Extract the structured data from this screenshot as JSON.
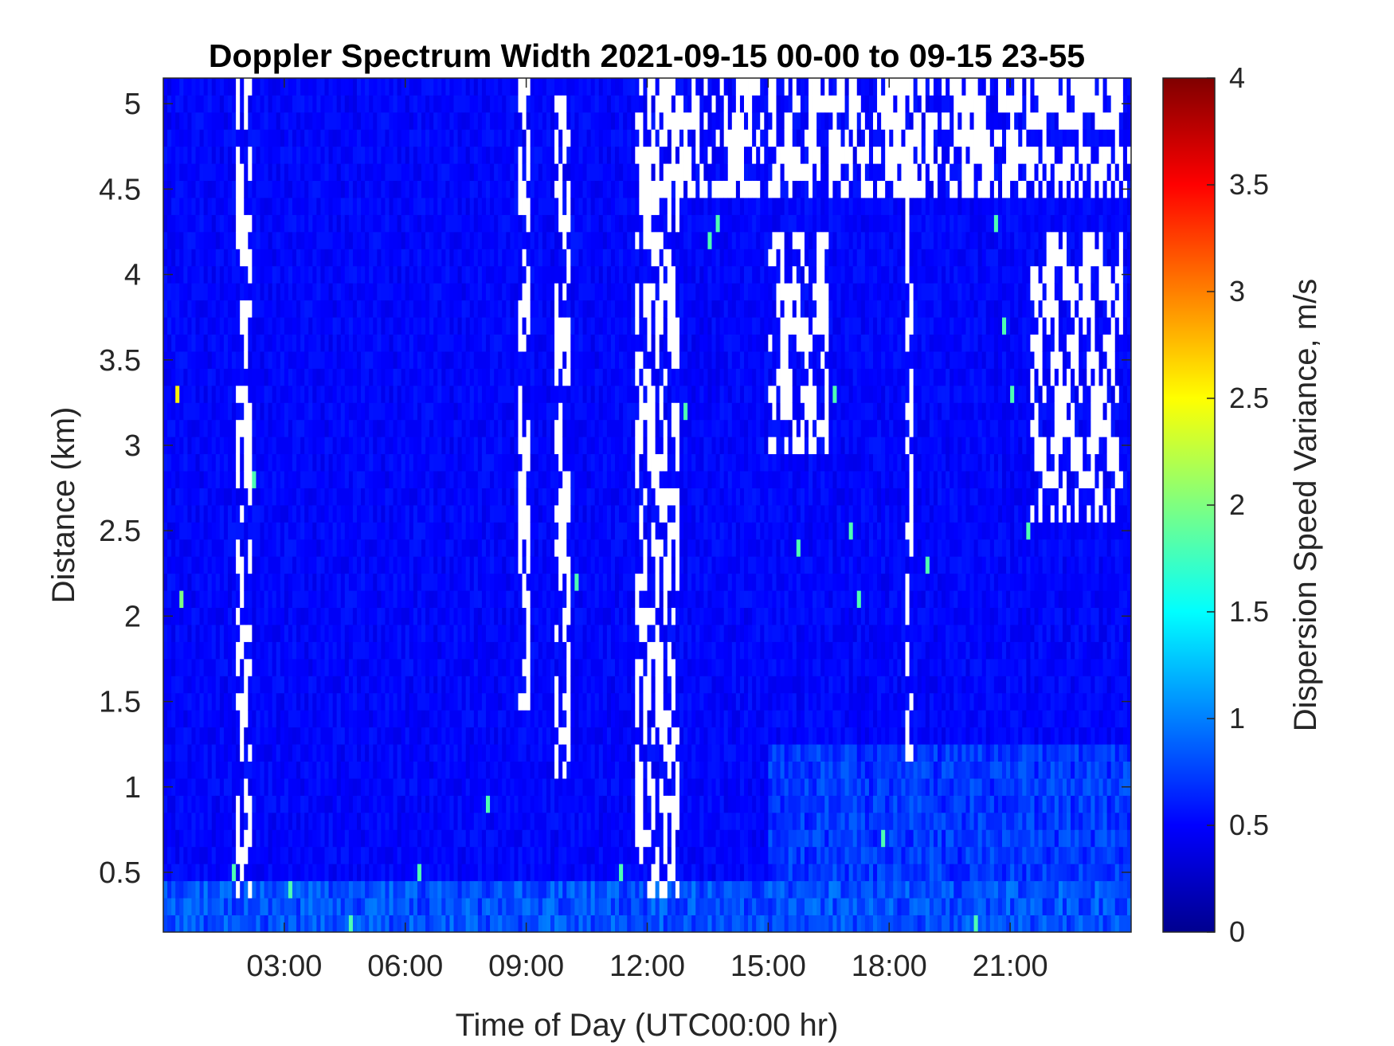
{
  "chart_data": {
    "type": "heatmap",
    "title": "Doppler Spectrum Width 2021-09-15 00-00 to 09-15 23-55",
    "xlabel": "Time of Day (UTC00:00 hr)",
    "ylabel": "Distance (km)",
    "xlim": [
      "00:00",
      "24:00"
    ],
    "ylim": [
      0.15,
      5.15
    ],
    "xticks": [
      "03:00",
      "06:00",
      "09:00",
      "12:00",
      "15:00",
      "18:00",
      "21:00"
    ],
    "yticks": [
      "0.5",
      "1",
      "1.5",
      "2",
      "2.5",
      "3",
      "3.5",
      "4",
      "4.5",
      "5"
    ],
    "colorbar": {
      "label": "Dispersion Speed Variance, m/s",
      "colormap": "jet",
      "limits": [
        0,
        4
      ],
      "ticks": [
        "0",
        "0.5",
        "1",
        "1.5",
        "2",
        "2.5",
        "3",
        "3.5",
        "4"
      ]
    },
    "missing_data_color": "#ffffff",
    "dominant_value_range": [
      0.4,
      0.6
    ],
    "missing_data_periods": [
      {
        "start": "01:50",
        "end": "02:10",
        "from_km": 0.4,
        "to_km": 5.15
      },
      {
        "start": "08:50",
        "end": "09:05",
        "from_km": 1.5,
        "to_km": 5.15
      },
      {
        "start": "09:45",
        "end": "10:05",
        "from_km": 1.1,
        "to_km": 5.15
      },
      {
        "start": "11:45",
        "end": "12:50",
        "from_km": 0.4,
        "to_km": 5.15
      },
      {
        "start": "18:25",
        "end": "18:35",
        "from_km": 1.2,
        "to_km": 5.15
      },
      {
        "start": "12:00",
        "end": "24:00",
        "from_km": 4.5,
        "to_km": 5.15
      },
      {
        "start": "15:00",
        "end": "16:30",
        "from_km": 3.0,
        "to_km": 4.3
      },
      {
        "start": "21:30",
        "end": "23:50",
        "from_km": 2.6,
        "to_km": 4.2
      }
    ],
    "higher_variance_regions": [
      {
        "start": "00:00",
        "end": "24:00",
        "from_km": 0.15,
        "to_km": 0.45,
        "approx_value": 0.8
      },
      {
        "start": "15:00",
        "end": "24:00",
        "from_km": 0.45,
        "to_km": 1.2,
        "approx_value": 0.7
      }
    ]
  }
}
